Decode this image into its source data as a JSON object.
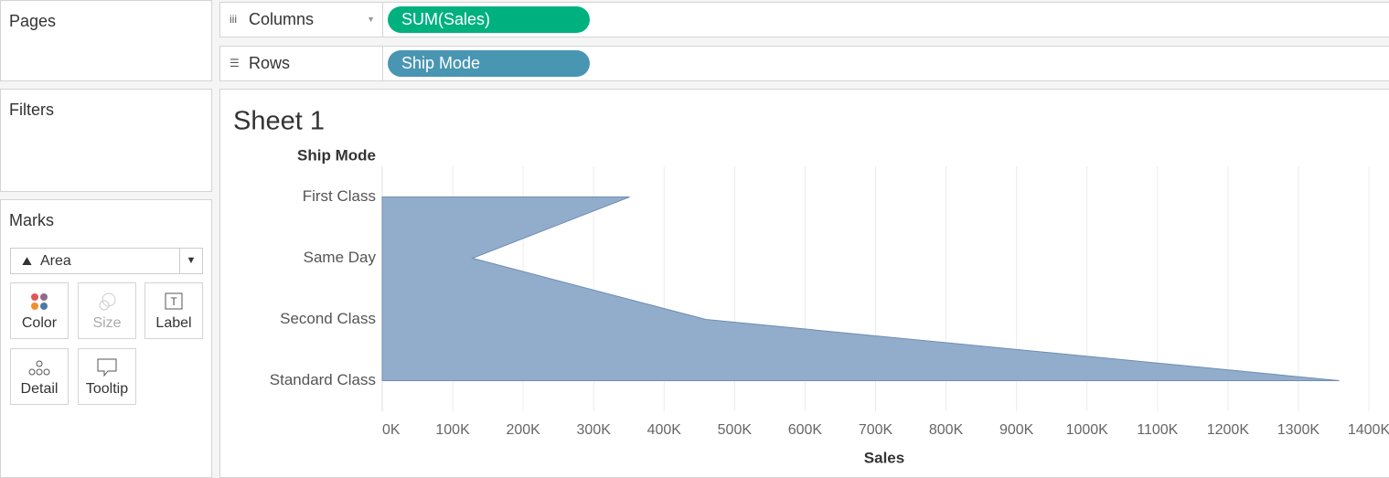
{
  "ui": {
    "pages": "Pages",
    "filters": "Filters",
    "marks": {
      "title": "Marks",
      "mark_type": "Area",
      "buttons": [
        "Color",
        "Size",
        "Label",
        "Detail",
        "Tooltip"
      ]
    },
    "shelves": {
      "columns": {
        "label": "Columns",
        "pill": "SUM(Sales)"
      },
      "rows": {
        "label": "Rows",
        "pill": "Ship Mode"
      }
    }
  },
  "chart_data": {
    "type": "area",
    "orientation": "horizontal",
    "title": "Sheet 1",
    "y_label": "Ship Mode",
    "x_label": "Sales",
    "categories": [
      "First Class",
      "Same Day",
      "Second Class",
      "Standard Class"
    ],
    "values": [
      351000,
      128000,
      459000,
      1358000
    ],
    "color": "#92adcb",
    "grid": true,
    "xlim": [
      0,
      1400000
    ],
    "xticks": [
      {
        "value": 0,
        "label": "0K"
      },
      {
        "value": 100000,
        "label": "100K"
      },
      {
        "value": 200000,
        "label": "200K"
      },
      {
        "value": 300000,
        "label": "300K"
      },
      {
        "value": 400000,
        "label": "400K"
      },
      {
        "value": 500000,
        "label": "500K"
      },
      {
        "value": 600000,
        "label": "600K"
      },
      {
        "value": 700000,
        "label": "700K"
      },
      {
        "value": 800000,
        "label": "800K"
      },
      {
        "value": 900000,
        "label": "900K"
      },
      {
        "value": 1000000,
        "label": "1000K"
      },
      {
        "value": 1100000,
        "label": "1100K"
      },
      {
        "value": 1200000,
        "label": "1200K"
      },
      {
        "value": 1300000,
        "label": "1300K"
      },
      {
        "value": 1400000,
        "label": "1400K"
      }
    ]
  }
}
